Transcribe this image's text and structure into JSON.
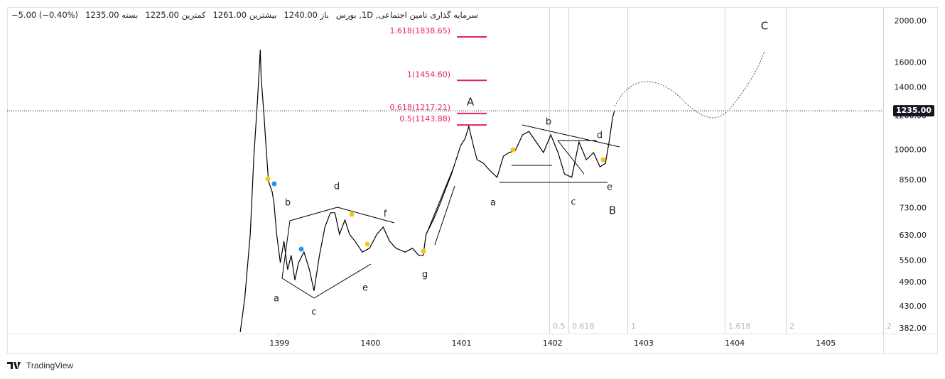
{
  "chart_data": {
    "type": "line",
    "header": {
      "symbol": "سرمایه گذاری تامین اجتماعی, 1D, بورس",
      "fields": [
        {
          "label": "باز",
          "value": "1240.00"
        },
        {
          "label": "بیشترین",
          "value": "1261.00"
        },
        {
          "label": "کمترین",
          "value": "1225.00"
        },
        {
          "label": "بسته",
          "value": "1235.00"
        }
      ],
      "change": "−5.00",
      "change_percent": "(−0.40%)"
    },
    "x": [
      1398.57,
      1398.62,
      1398.68,
      1398.72,
      1398.76,
      1398.79,
      1398.8,
      1398.83,
      1398.85,
      1398.88,
      1398.92,
      1398.94,
      1398.97,
      1399.01,
      1399.05,
      1399.09,
      1399.13,
      1399.17,
      1399.21,
      1399.27,
      1399.33,
      1399.38,
      1399.44,
      1399.5,
      1399.56,
      1399.61,
      1399.66,
      1399.72,
      1399.77,
      1399.83,
      1399.91,
      1399.99,
      1400.07,
      1400.14,
      1400.21,
      1400.28,
      1400.38,
      1400.46,
      1400.53,
      1400.58,
      1400.61,
      1400.69,
      1400.77,
      1400.83,
      1400.89,
      1400.94,
      1400.99,
      1401.04,
      1401.08,
      1401.13,
      1401.17,
      1401.24,
      1401.31,
      1401.39,
      1401.46,
      1401.52,
      1401.59,
      1401.67,
      1401.74,
      1401.82,
      1401.9,
      1401.98,
      1402.06,
      1402.13,
      1402.21,
      1402.29,
      1402.37,
      1402.45,
      1402.52,
      1402.58,
      1402.62,
      1402.66,
      1402.68
    ],
    "values": [
      375,
      450,
      635,
      967,
      1313,
      1716,
      1473,
      1217,
      1044,
      846,
      799,
      754,
      635,
      545,
      612,
      525,
      567,
      496,
      545,
      577,
      525,
      468,
      567,
      660,
      713,
      713,
      635,
      686,
      635,
      612,
      577,
      589,
      635,
      660,
      612,
      589,
      577,
      589,
      567,
      567,
      635,
      686,
      754,
      815,
      879,
      949,
      1024,
      1064,
      1136,
      1024,
      949,
      931,
      896,
      863,
      967,
      986,
      997,
      1085,
      1105,
      1044,
      986,
      1085,
      986,
      879,
      863,
      1044,
      949,
      986,
      913,
      931,
      1044,
      1194,
      1235
    ],
    "color": "#000000",
    "log_scale": true,
    "grid": false,
    "xlim": [
      1396.01,
      1405.63
    ],
    "xticks": [
      1399,
      1400,
      1401,
      1402,
      1403,
      1404,
      1405
    ],
    "ylim": [
      372,
      2159
    ],
    "yticks": [
      {
        "value": 382,
        "label": "382.00"
      },
      {
        "value": 430,
        "label": "430.00"
      },
      {
        "value": 490,
        "label": "490.00"
      },
      {
        "value": 550,
        "label": "550.00"
      },
      {
        "value": 630,
        "label": "630.00"
      },
      {
        "value": 730,
        "label": "730.00"
      },
      {
        "value": 850,
        "label": "850.00"
      },
      {
        "value": 1000,
        "label": "1000.00"
      },
      {
        "value": 1200,
        "label": "1200.00"
      },
      {
        "value": 1400,
        "label": "1400.00"
      },
      {
        "value": 1600,
        "label": "1600.00"
      },
      {
        "value": 2000,
        "label": "2000.00"
      }
    ],
    "last_price": {
      "value": 1235,
      "label": "1235.00"
    },
    "fib_levels": [
      {
        "value": 1838.65,
        "label": "1.618(1838.65)"
      },
      {
        "value": 1454.6,
        "label": "1(1454.60)"
      },
      {
        "value": 1217.21,
        "label": "0.618(1217.21)"
      },
      {
        "value": 1143.88,
        "label": "0.5(1143.88)"
      }
    ],
    "time_fib_levels": [
      0.5,
      0.618,
      1,
      1.618,
      2,
      2
    ],
    "wave_labels": [
      "A",
      "B",
      "C",
      "a",
      "b",
      "c",
      "d",
      "e",
      "f",
      "g",
      "a",
      "b",
      "c",
      "d",
      "e"
    ]
  },
  "footer": {
    "brand": "TradingView"
  }
}
